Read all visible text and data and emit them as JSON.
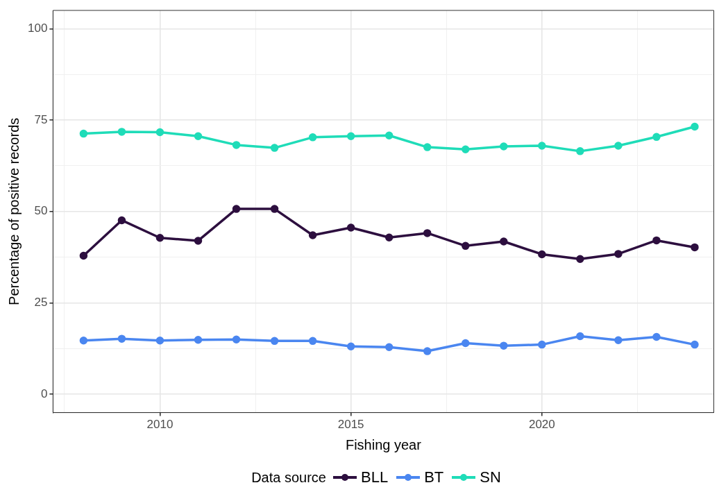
{
  "chart_data": {
    "type": "line",
    "xlabel": "Fishing year",
    "ylabel": "Percentage of positive records",
    "legend_title": "Data source",
    "legend": "bottom",
    "grid": true,
    "marker": "circle",
    "line_style": "solid",
    "x": [
      2008,
      2009,
      2010,
      2011,
      2012,
      2013,
      2014,
      2015,
      2016,
      2017,
      2018,
      2019,
      2020,
      2021,
      2022,
      2023,
      2024
    ],
    "xlim": [
      2007.2,
      2024.5
    ],
    "xticks": [
      {
        "value": 2007.5,
        "label": null
      },
      2010,
      {
        "value": 2012.5,
        "label": null
      },
      2015,
      {
        "value": 2017.5,
        "label": null
      },
      2020,
      {
        "value": 2022.5,
        "label": null
      }
    ],
    "ylim": [
      -5,
      105
    ],
    "yticks": [
      0,
      {
        "value": 12.5,
        "label": null
      },
      25,
      {
        "value": 37.5,
        "label": null
      },
      50,
      {
        "value": 62.5,
        "label": null
      },
      75,
      {
        "value": 87.5,
        "label": null
      },
      100
    ],
    "series": [
      {
        "name": "BLL",
        "color": "#2d0f3f",
        "values": [
          37.9,
          47.6,
          42.8,
          42.0,
          50.7,
          50.7,
          43.5,
          45.6,
          42.9,
          44.1,
          40.6,
          41.8,
          38.3,
          37.0,
          38.4,
          42.1,
          40.2
        ]
      },
      {
        "name": "BT",
        "color": "#4a86f0",
        "values": [
          14.7,
          15.2,
          14.7,
          14.9,
          15.0,
          14.6,
          14.6,
          13.1,
          12.9,
          11.8,
          14.0,
          13.3,
          13.6,
          15.9,
          14.8,
          15.7,
          13.6
        ]
      },
      {
        "name": "SN",
        "color": "#1fdcb8",
        "values": [
          71.3,
          71.8,
          71.7,
          70.6,
          68.2,
          67.4,
          70.3,
          70.6,
          70.8,
          67.6,
          67.0,
          67.8,
          68.0,
          66.5,
          68.0,
          70.4,
          73.2
        ]
      }
    ]
  }
}
